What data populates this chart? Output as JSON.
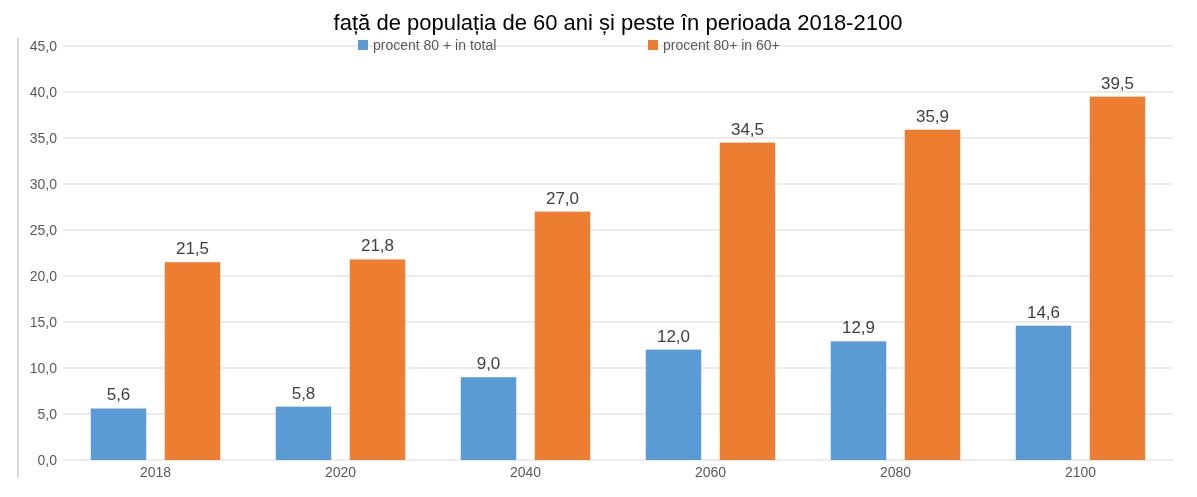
{
  "chart_data": {
    "type": "bar",
    "title": "față de populația de 60 ani și peste în perioada 2018-2100",
    "categories": [
      "2018",
      "2020",
      "2040",
      "2060",
      "2080",
      "2100"
    ],
    "series": [
      {
        "name": "procent 80 + in total",
        "color": "#5b9bd5",
        "values": [
          5.6,
          5.8,
          9.0,
          12.0,
          12.9,
          14.6
        ],
        "value_labels": [
          "5,6",
          "5,8",
          "9,0",
          "12,0",
          "12,9",
          "14,6"
        ]
      },
      {
        "name": "procent 80+ in 60+",
        "color": "#ed7d31",
        "values": [
          21.5,
          21.8,
          27.0,
          34.5,
          35.9,
          39.5
        ],
        "value_labels": [
          "21,5",
          "21,8",
          "27,0",
          "34,5",
          "35,9",
          "39,5"
        ]
      }
    ],
    "ylim": [
      0,
      45
    ],
    "yticks": [
      {
        "value": 0,
        "label": "0,0"
      },
      {
        "value": 5,
        "label": "5,0"
      },
      {
        "value": 10,
        "label": "10,0"
      },
      {
        "value": 15,
        "label": "15,0"
      },
      {
        "value": 20,
        "label": "20,0"
      },
      {
        "value": 25,
        "label": "25,0"
      },
      {
        "value": 30,
        "label": "30,0"
      },
      {
        "value": 35,
        "label": "35,0"
      },
      {
        "value": 40,
        "label": "40,0"
      },
      {
        "value": 45,
        "label": "45,0"
      }
    ],
    "grid": "y",
    "legend": "top"
  }
}
